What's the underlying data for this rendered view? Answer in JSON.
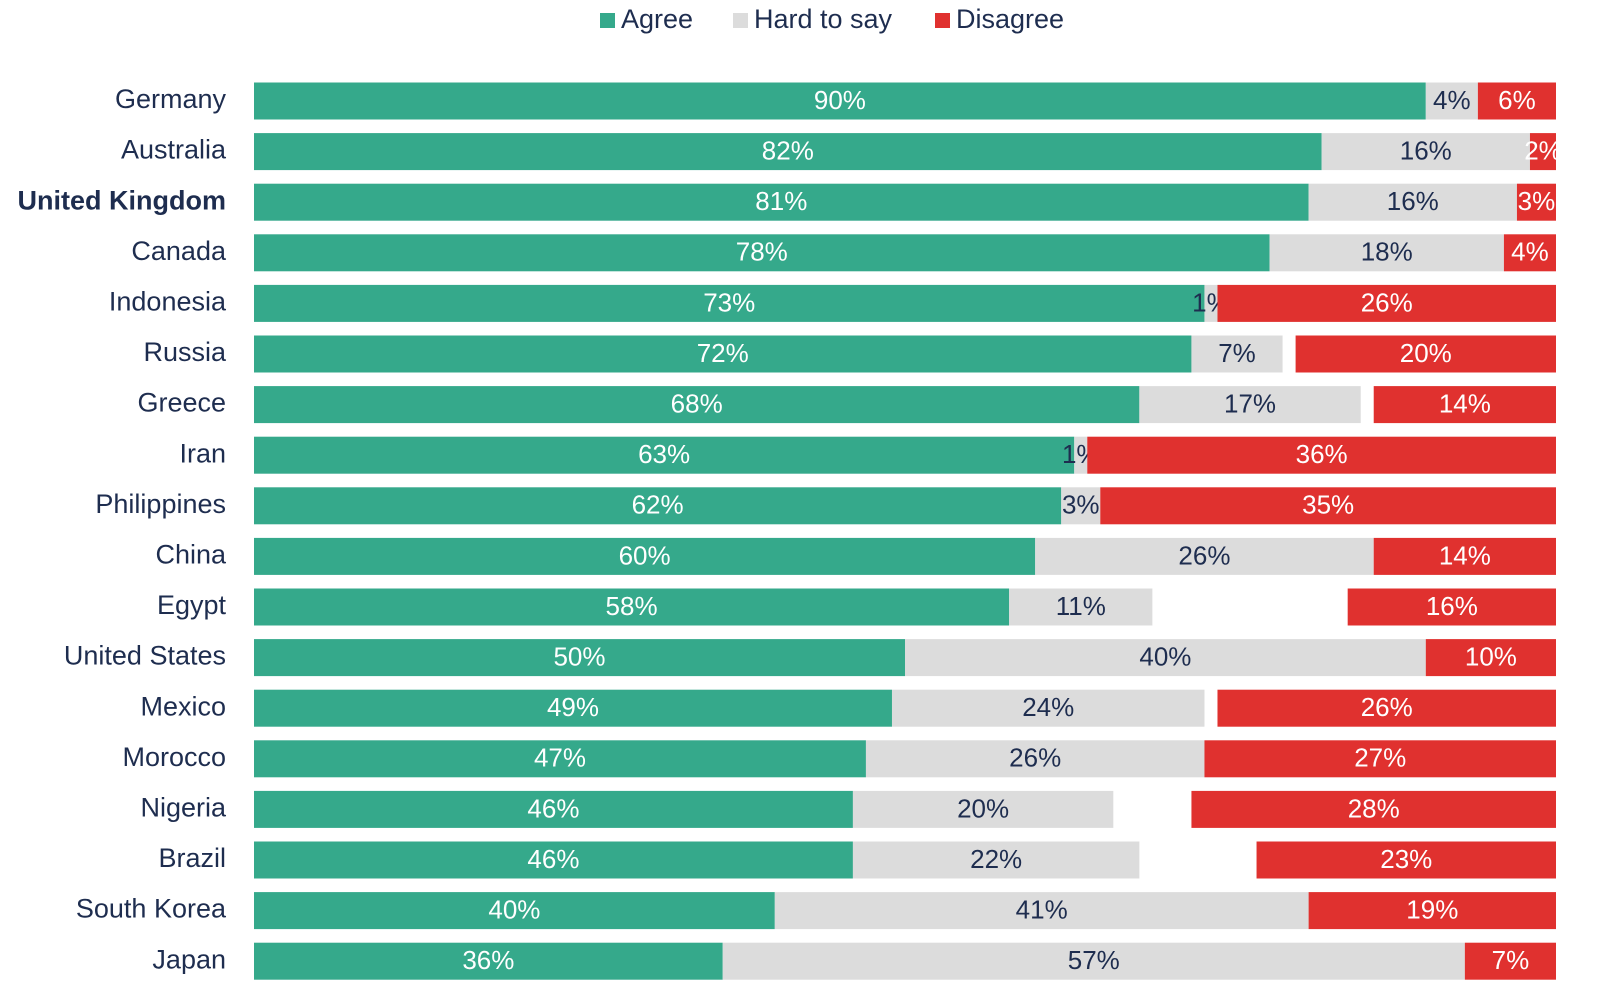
{
  "chart_data": {
    "type": "bar",
    "orientation": "horizontal",
    "stacked": true,
    "categories": [
      "Germany",
      "Australia",
      "United Kingdom",
      "Canada",
      "Indonesia",
      "Russia",
      "Greece",
      "Iran",
      "Philippines",
      "China",
      "Egypt",
      "United States",
      "Mexico",
      "Morocco",
      "Nigeria",
      "Brazil",
      "South Korea",
      "Japan"
    ],
    "highlight": "United Kingdom",
    "xlim": [
      0,
      100
    ],
    "legend": "top",
    "series": [
      {
        "name": "Agree",
        "color": "#35a98b",
        "label_color": "#ffffff",
        "anchor": "left",
        "values": [
          90,
          82,
          81,
          78,
          73,
          72,
          68,
          63,
          62,
          60,
          58,
          50,
          49,
          47,
          46,
          46,
          40,
          36
        ],
        "value_labels": [
          "90%",
          "82%",
          "81%",
          "78%",
          "73%",
          "72%",
          "68%",
          "63%",
          "62%",
          "60%",
          "58%",
          "50%",
          "49%",
          "47%",
          "46%",
          "46%",
          "40%",
          "36%"
        ]
      },
      {
        "name": "Hard to say",
        "color": "#dcdcdc",
        "label_color": "#1e2d4f",
        "anchor": "left",
        "values": [
          4,
          16,
          16,
          18,
          1,
          7,
          17,
          1,
          3,
          26,
          11,
          40,
          24,
          26,
          20,
          22,
          41,
          57
        ],
        "value_labels": [
          "4%",
          "16%",
          "16%",
          "18%",
          "1%",
          "7%",
          "17%",
          "1%",
          "3%",
          "26%",
          "11%",
          "40%",
          "24%",
          "26%",
          "20%",
          "22%",
          "41%",
          "57%"
        ]
      },
      {
        "name": "Disagree",
        "color": "#e0312f",
        "label_color": "#ffffff",
        "anchor": "right",
        "values": [
          6,
          2,
          3,
          4,
          26,
          20,
          14,
          36,
          35,
          14,
          16,
          10,
          26,
          27,
          28,
          23,
          19,
          7
        ],
        "value_labels": [
          "6%",
          "2%",
          "3%",
          "4%",
          "26%",
          "20%",
          "14%",
          "36%",
          "35%",
          "14%",
          "16%",
          "10%",
          "26%",
          "27%",
          "28%",
          "23%",
          "19%",
          "7%"
        ]
      }
    ]
  }
}
